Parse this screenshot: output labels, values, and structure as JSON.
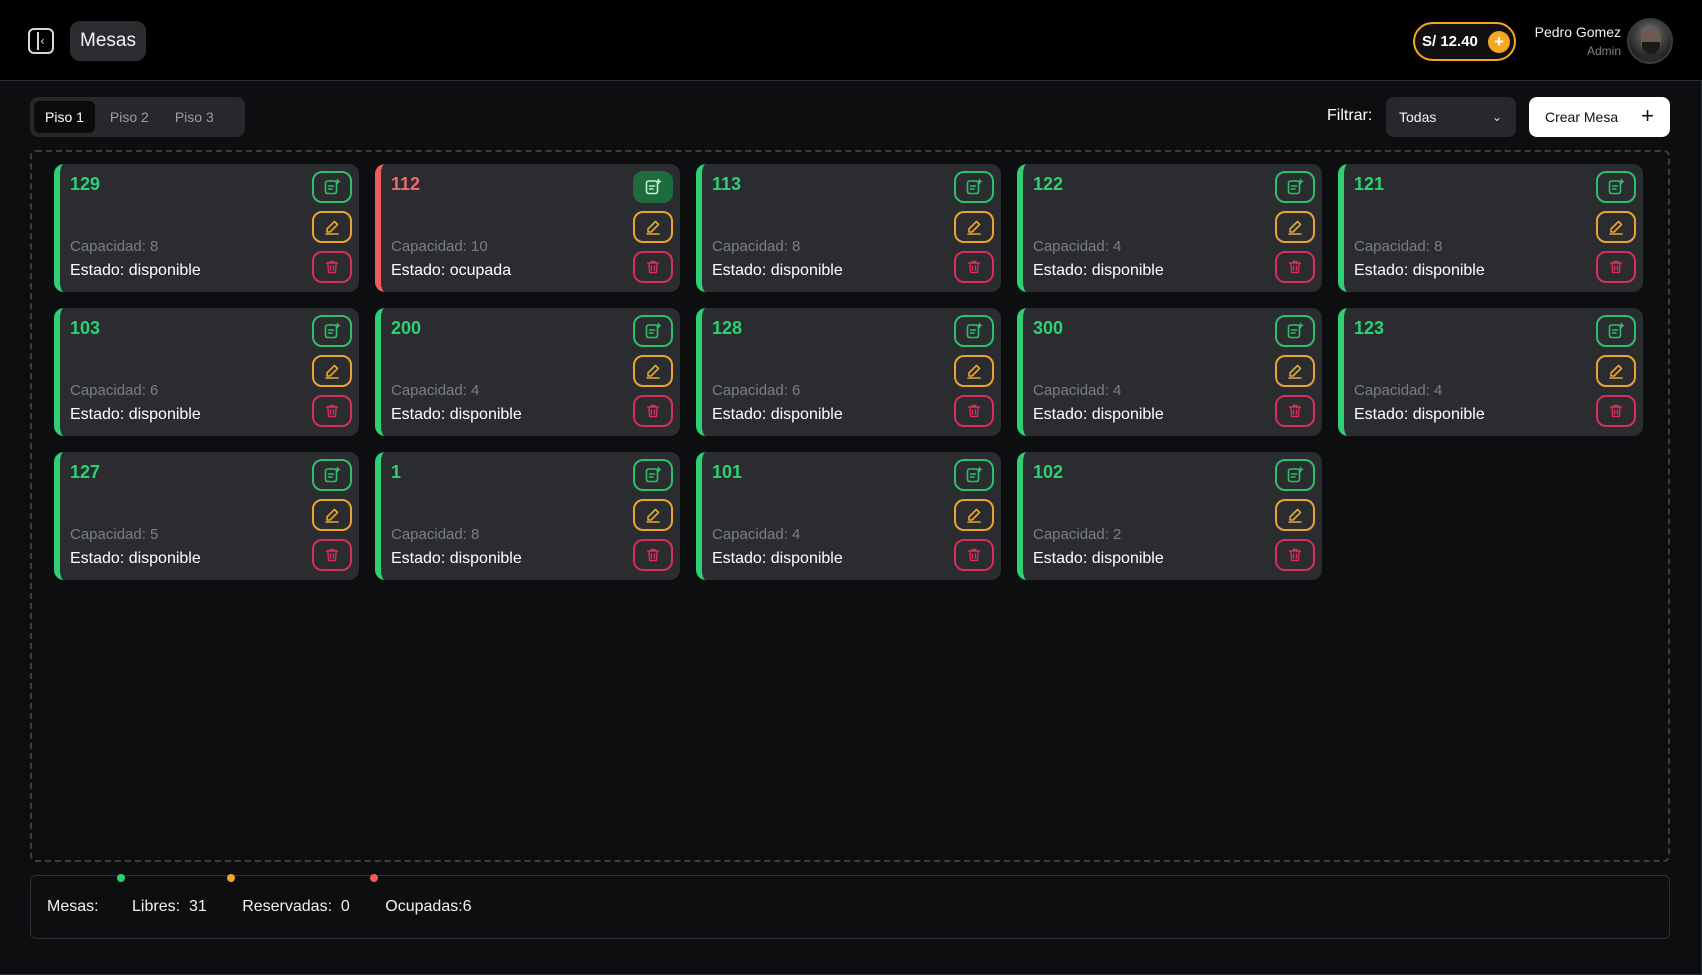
{
  "header": {
    "title": "Mesas",
    "balance": "S/ 12.40",
    "balance_add": "+",
    "user_name": "Pedro Gomez",
    "user_role": "Admin"
  },
  "toolbar": {
    "floors": [
      "Piso 1",
      "Piso 2",
      "Piso 3"
    ],
    "active_floor": "Piso 1",
    "filter_label": "Filtrar:",
    "filter_value": "Todas",
    "create_label": "Crear Mesa",
    "create_icon": "+"
  },
  "colors": {
    "available": "#2fd074",
    "occupied": "#ef5b5b",
    "reserved": "#f5a623"
  },
  "tables": [
    {
      "number": "129",
      "capacity": "Capacidad: 8",
      "status": "Estado: disponible",
      "state": "available"
    },
    {
      "number": "112",
      "capacity": "Capacidad: 10",
      "status": "Estado: ocupada",
      "state": "occupied"
    },
    {
      "number": "113",
      "capacity": "Capacidad: 8",
      "status": "Estado: disponible",
      "state": "available"
    },
    {
      "number": "122",
      "capacity": "Capacidad: 4",
      "status": "Estado: disponible",
      "state": "available"
    },
    {
      "number": "121",
      "capacity": "Capacidad: 8",
      "status": "Estado: disponible",
      "state": "available"
    },
    {
      "number": "103",
      "capacity": "Capacidad: 6",
      "status": "Estado: disponible",
      "state": "available"
    },
    {
      "number": "200",
      "capacity": "Capacidad: 4",
      "status": "Estado: disponible",
      "state": "available"
    },
    {
      "number": "128",
      "capacity": "Capacidad: 6",
      "status": "Estado: disponible",
      "state": "available"
    },
    {
      "number": "300",
      "capacity": "Capacidad: 4",
      "status": "Estado: disponible",
      "state": "available"
    },
    {
      "number": "123",
      "capacity": "Capacidad: 4",
      "status": "Estado: disponible",
      "state": "available"
    },
    {
      "number": "127",
      "capacity": "Capacidad: 5",
      "status": "Estado: disponible",
      "state": "available"
    },
    {
      "number": "1",
      "capacity": "Capacidad: 8",
      "status": "Estado: disponible",
      "state": "available"
    },
    {
      "number": "101",
      "capacity": "Capacidad: 4",
      "status": "Estado: disponible",
      "state": "available"
    },
    {
      "number": "102",
      "capacity": "Capacidad: 2",
      "status": "Estado: disponible",
      "state": "available"
    }
  ],
  "summary": {
    "label": "Mesas:",
    "free_label": "Libres:",
    "free_count": "31",
    "reserved_label": "Reservadas:",
    "reserved_count": "0",
    "occupied_text": "Ocupadas:6"
  }
}
